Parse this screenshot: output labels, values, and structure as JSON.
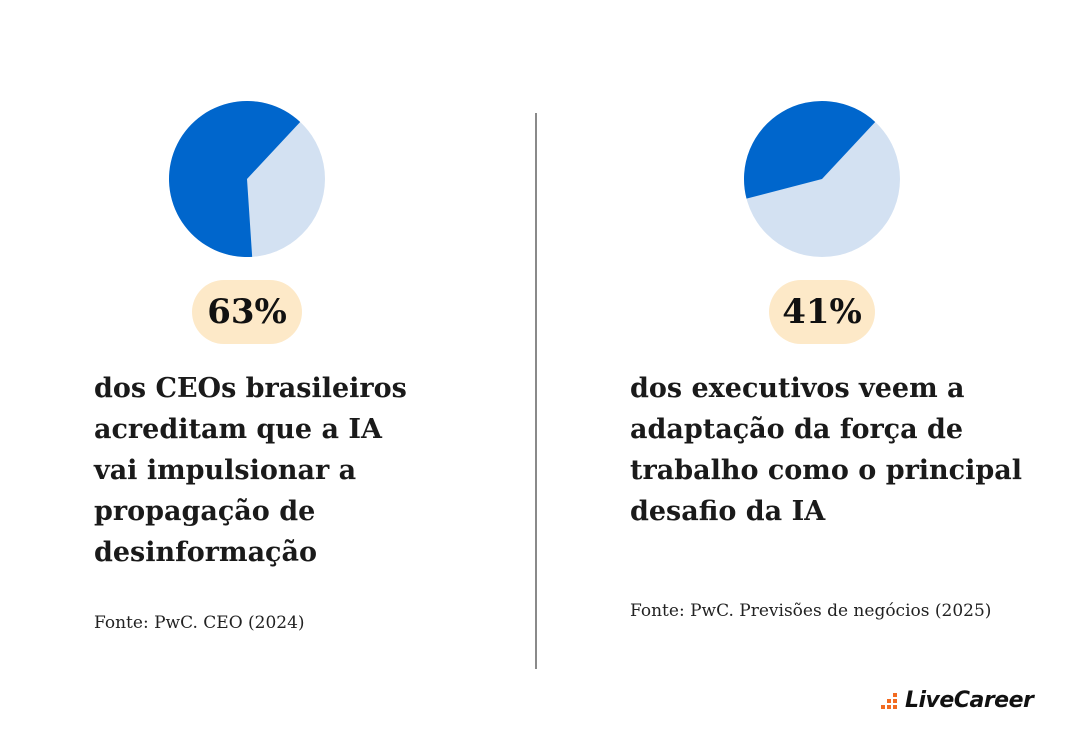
{
  "chart_data": [
    {
      "type": "pie",
      "value": 63,
      "remainder": 37,
      "label": "63%",
      "statement": "dos CEOs brasileiros\nacreditam que a IA\nvai impulsionar a\npropagação de\ndesinformação",
      "source": "Fonte: PwC. CEO (2024)",
      "colors": {
        "value": "#0066cc",
        "remainder": "#d3e1f2"
      }
    },
    {
      "type": "pie",
      "value": 41,
      "remainder": 59,
      "label": "41%",
      "statement": "dos executivos  veem a\nadaptação da força de\ntrabalho como o principal\ndesafio da IA",
      "source": "Fonte: PwC. Previsões de negócios (2025)",
      "colors": {
        "value": "#0066cc",
        "remainder": "#d3e1f2"
      }
    }
  ],
  "brand": {
    "logo_text": "LiveCareer",
    "logo_icon": "bar-dots-icon",
    "accent": "#f26b21",
    "highlight": "#fde9c8"
  }
}
